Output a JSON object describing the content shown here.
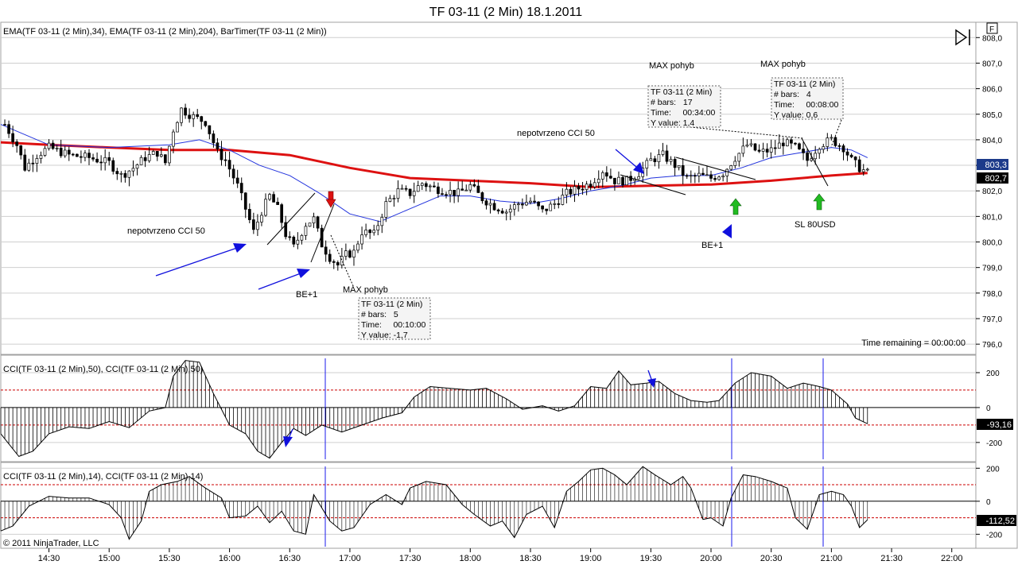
{
  "window": {
    "title": "TF 03-11 (2 Min)  18.1.2011"
  },
  "panels": {
    "price": {
      "indicator_label": "EMA(TF 03-11 (2 Min),34), EMA(TF 03-11 (2 Min),204), BarTimer(TF 03-11 (2 Min))",
      "timer_text": "Time remaining = 00:00:00",
      "current_price": "803,3",
      "current_ema": "802,7"
    },
    "cci50": {
      "label": "CCI(TF 03-11 (2 Min),50), CCI(TF 03-11 (2 Min),50)",
      "current_value": "-93,16"
    },
    "cci14": {
      "label": "CCI(TF 03-11 (2 Min),14), CCI(TF 03-11 (2 Min),14)",
      "current_value": "-112,52"
    }
  },
  "copyright": "© 2011 NinjaTrader, LLC",
  "icons": {
    "scroll_end": "skip-to-end-icon",
    "panel_toggle": "F"
  },
  "annotations": {
    "nepotvrzeno_left": "nepotvrzeno CCI 50",
    "nepotvrzeno_right": "nepotvrzeno CCI 50",
    "be_left": "BE+1",
    "be_right": "BE+1",
    "sl": "SL 80USD",
    "max1": "MAX pohyb",
    "max2": "MAX pohyb",
    "max3": "MAX pohyb",
    "box1": {
      "l1": "TF 03-11 (2 Min)",
      "l2": "# bars:   5",
      "l3": "Time:     00:10:00",
      "l4": "Y value: -1,7"
    },
    "box2": {
      "l1": "TF 03-11 (2 Min)",
      "l2": "# bars:   17",
      "l3": "Time:     00:34:00",
      "l4": "Y value: 1,4"
    },
    "box3": {
      "l1": "TF 03-11 (2 Min)",
      "l2": "# bars:   4",
      "l3": "Time:     00:08:00",
      "l4": "Y value: 0,6"
    }
  },
  "colors": {
    "ema34": "#2233dd",
    "ema204": "#dd1111",
    "candle_up": "#ffffff",
    "candle_down": "#000000",
    "annotation_arrow": "#1010dd",
    "signal_up": "#22bb22",
    "signal_down": "#dd1111",
    "cci_line": "#000000",
    "cci_level": "#cc0000",
    "session_line": "#1a1aee",
    "price_badge": "#1c3a8a"
  },
  "chart_data": [
    {
      "type": "candlestick",
      "title": "TF 03-11 (2 Min)  18.1.2011",
      "x_ticks": [
        "14:30",
        "15:00",
        "15:30",
        "16:00",
        "16:30",
        "17:00",
        "17:30",
        "18:00",
        "18:30",
        "19:00",
        "19:30",
        "20:00",
        "20:30",
        "21:00",
        "21:30",
        "22:00"
      ],
      "y_ticks": [
        "808,0",
        "807,0",
        "806,0",
        "805,0",
        "804,0",
        "803,0",
        "802,0",
        "801,0",
        "800,0",
        "799,0",
        "798,0",
        "797,0",
        "796,0"
      ],
      "ylim": [
        795.6,
        808.6
      ],
      "xlim": [
        "14:06",
        "22:12"
      ],
      "close_path": [
        [
          "14:08",
          804.6
        ],
        [
          "14:14",
          803.8
        ],
        [
          "14:18",
          802.9
        ],
        [
          "14:24",
          803.4
        ],
        [
          "14:30",
          803.7
        ],
        [
          "14:40",
          803.4
        ],
        [
          "14:50",
          803.3
        ],
        [
          "15:00",
          803.1
        ],
        [
          "15:06",
          802.6
        ],
        [
          "15:12",
          802.9
        ],
        [
          "15:18",
          803.3
        ],
        [
          "15:24",
          803.5
        ],
        [
          "15:28",
          803.1
        ],
        [
          "15:32",
          804.4
        ],
        [
          "15:36",
          805.2
        ],
        [
          "15:42",
          804.9
        ],
        [
          "15:48",
          804.7
        ],
        [
          "15:54",
          803.5
        ],
        [
          "15:58",
          803.2
        ],
        [
          "16:04",
          802.2
        ],
        [
          "16:08",
          801.3
        ],
        [
          "16:12",
          800.4
        ],
        [
          "16:16",
          801.2
        ],
        [
          "16:20",
          801.8
        ],
        [
          "16:24",
          801.3
        ],
        [
          "16:28",
          800.3
        ],
        [
          "16:32",
          799.8
        ],
        [
          "16:38",
          800.7
        ],
        [
          "16:42",
          800.9
        ],
        [
          "16:46",
          799.9
        ],
        [
          "16:50",
          799.4
        ],
        [
          "16:54",
          799.1
        ],
        [
          "16:58",
          799.5
        ],
        [
          "17:02",
          799.6
        ],
        [
          "17:06",
          800.4
        ],
        [
          "17:12",
          800.3
        ],
        [
          "17:18",
          801.5
        ],
        [
          "17:24",
          802.0
        ],
        [
          "17:30",
          801.9
        ],
        [
          "17:36",
          802.3
        ],
        [
          "17:42",
          802.1
        ],
        [
          "17:48",
          802.0
        ],
        [
          "17:54",
          801.9
        ],
        [
          "18:00",
          802.2
        ],
        [
          "18:06",
          801.7
        ],
        [
          "18:12",
          801.4
        ],
        [
          "18:18",
          801.2
        ],
        [
          "18:24",
          801.5
        ],
        [
          "18:30",
          801.6
        ],
        [
          "18:36",
          801.2
        ],
        [
          "18:42",
          801.5
        ],
        [
          "18:48",
          801.9
        ],
        [
          "18:54",
          802.1
        ],
        [
          "19:00",
          802.3
        ],
        [
          "19:06",
          802.8
        ],
        [
          "19:12",
          802.4
        ],
        [
          "19:18",
          802.4
        ],
        [
          "19:24",
          802.7
        ],
        [
          "19:30",
          803.2
        ],
        [
          "19:36",
          803.4
        ],
        [
          "19:42",
          803.0
        ],
        [
          "19:48",
          802.5
        ],
        [
          "19:54",
          802.6
        ],
        [
          "20:00",
          802.5
        ],
        [
          "20:06",
          802.7
        ],
        [
          "20:12",
          803.3
        ],
        [
          "20:18",
          803.8
        ],
        [
          "20:24",
          803.5
        ],
        [
          "20:30",
          803.6
        ],
        [
          "20:36",
          803.9
        ],
        [
          "20:42",
          803.7
        ],
        [
          "20:48",
          803.2
        ],
        [
          "20:54",
          803.8
        ],
        [
          "21:00",
          804.0
        ],
        [
          "21:06",
          803.7
        ],
        [
          "21:10",
          803.2
        ],
        [
          "21:14",
          802.9
        ],
        [
          "21:18",
          802.7
        ]
      ],
      "ema34_path": [
        [
          "14:06",
          804.6
        ],
        [
          "14:30",
          803.8
        ],
        [
          "15:00",
          803.7
        ],
        [
          "15:30",
          803.8
        ],
        [
          "15:45",
          804.0
        ],
        [
          "16:00",
          803.6
        ],
        [
          "16:15",
          803.0
        ],
        [
          "16:30",
          802.6
        ],
        [
          "16:45",
          801.9
        ],
        [
          "17:00",
          801.1
        ],
        [
          "17:15",
          800.8
        ],
        [
          "17:30",
          801.3
        ],
        [
          "17:45",
          801.8
        ],
        [
          "18:00",
          801.8
        ],
        [
          "18:15",
          801.6
        ],
        [
          "18:30",
          801.5
        ],
        [
          "18:45",
          801.7
        ],
        [
          "19:00",
          802.0
        ],
        [
          "19:15",
          802.2
        ],
        [
          "19:30",
          802.5
        ],
        [
          "19:45",
          802.6
        ],
        [
          "20:00",
          802.6
        ],
        [
          "20:15",
          802.9
        ],
        [
          "20:30",
          803.3
        ],
        [
          "20:45",
          803.5
        ],
        [
          "21:00",
          803.7
        ],
        [
          "21:10",
          803.6
        ],
        [
          "21:18",
          803.3
        ]
      ],
      "ema204_path": [
        [
          "14:06",
          803.9
        ],
        [
          "14:30",
          803.8
        ],
        [
          "15:00",
          803.7
        ],
        [
          "15:30",
          803.6
        ],
        [
          "16:00",
          803.6
        ],
        [
          "16:30",
          803.4
        ],
        [
          "17:00",
          802.9
        ],
        [
          "17:30",
          802.5
        ],
        [
          "18:00",
          802.4
        ],
        [
          "18:30",
          802.3
        ],
        [
          "19:00",
          802.15
        ],
        [
          "19:30",
          802.2
        ],
        [
          "20:00",
          802.25
        ],
        [
          "20:30",
          802.4
        ],
        [
          "21:00",
          802.6
        ],
        [
          "21:18",
          802.7
        ]
      ]
    },
    {
      "type": "bar",
      "title": "CCI(TF 03-11 (2 Min),50)",
      "y_ticks": [
        "200",
        "0",
        "-200"
      ],
      "ylim": [
        -310,
        300
      ],
      "levels": [
        100,
        -100
      ],
      "path": [
        [
          "14:06",
          -150
        ],
        [
          "14:15",
          -280
        ],
        [
          "14:22",
          -250
        ],
        [
          "14:30",
          -150
        ],
        [
          "14:40",
          -110
        ],
        [
          "14:50",
          -120
        ],
        [
          "15:00",
          -80
        ],
        [
          "15:10",
          -115
        ],
        [
          "15:20",
          -20
        ],
        [
          "15:28",
          0
        ],
        [
          "15:32",
          180
        ],
        [
          "15:38",
          270
        ],
        [
          "15:45",
          260
        ],
        [
          "15:52",
          80
        ],
        [
          "16:00",
          -100
        ],
        [
          "16:08",
          -150
        ],
        [
          "16:14",
          -250
        ],
        [
          "16:20",
          -290
        ],
        [
          "16:26",
          -200
        ],
        [
          "16:32",
          -120
        ],
        [
          "16:38",
          -160
        ],
        [
          "16:46",
          -100
        ],
        [
          "16:56",
          -140
        ],
        [
          "17:06",
          -100
        ],
        [
          "17:16",
          -60
        ],
        [
          "17:26",
          -30
        ],
        [
          "17:32",
          60
        ],
        [
          "17:40",
          120
        ],
        [
          "17:50",
          110
        ],
        [
          "18:00",
          100
        ],
        [
          "18:08",
          110
        ],
        [
          "18:18",
          50
        ],
        [
          "18:26",
          -10
        ],
        [
          "18:36",
          10
        ],
        [
          "18:44",
          -20
        ],
        [
          "18:52",
          10
        ],
        [
          "19:00",
          120
        ],
        [
          "19:08",
          110
        ],
        [
          "19:14",
          210
        ],
        [
          "19:20",
          130
        ],
        [
          "19:28",
          140
        ],
        [
          "19:34",
          150
        ],
        [
          "19:42",
          80
        ],
        [
          "19:50",
          40
        ],
        [
          "19:58",
          30
        ],
        [
          "20:04",
          40
        ],
        [
          "20:12",
          140
        ],
        [
          "20:20",
          200
        ],
        [
          "20:30",
          180
        ],
        [
          "20:38",
          110
        ],
        [
          "20:46",
          140
        ],
        [
          "20:54",
          120
        ],
        [
          "21:00",
          100
        ],
        [
          "21:08",
          20
        ],
        [
          "21:12",
          -60
        ],
        [
          "21:18",
          -93
        ]
      ]
    },
    {
      "type": "line",
      "title": "CCI(TF 03-11 (2 Min),14)",
      "y_ticks": [
        "200",
        "0",
        "-200"
      ],
      "ylim": [
        -285,
        235
      ],
      "levels": [
        100,
        -100
      ],
      "path": [
        [
          "14:06",
          -180
        ],
        [
          "14:12",
          -150
        ],
        [
          "14:20",
          -30
        ],
        [
          "14:30",
          30
        ],
        [
          "14:40",
          20
        ],
        [
          "14:50",
          20
        ],
        [
          "15:00",
          -20
        ],
        [
          "15:06",
          -100
        ],
        [
          "15:10",
          -230
        ],
        [
          "15:16",
          -120
        ],
        [
          "15:20",
          60
        ],
        [
          "15:26",
          100
        ],
        [
          "15:34",
          120
        ],
        [
          "15:40",
          150
        ],
        [
          "15:48",
          80
        ],
        [
          "15:56",
          20
        ],
        [
          "16:00",
          -100
        ],
        [
          "16:08",
          -90
        ],
        [
          "16:14",
          -30
        ],
        [
          "16:20",
          -130
        ],
        [
          "16:26",
          -60
        ],
        [
          "16:32",
          -180
        ],
        [
          "16:38",
          -200
        ],
        [
          "16:42",
          40
        ],
        [
          "16:50",
          -120
        ],
        [
          "16:56",
          -180
        ],
        [
          "17:02",
          -160
        ],
        [
          "17:10",
          -20
        ],
        [
          "17:18",
          40
        ],
        [
          "17:26",
          -20
        ],
        [
          "17:30",
          80
        ],
        [
          "17:38",
          120
        ],
        [
          "17:48",
          100
        ],
        [
          "17:56",
          -20
        ],
        [
          "18:02",
          -80
        ],
        [
          "18:10",
          -150
        ],
        [
          "18:16",
          -120
        ],
        [
          "18:22",
          -220
        ],
        [
          "18:28",
          -80
        ],
        [
          "18:36",
          -30
        ],
        [
          "18:42",
          -160
        ],
        [
          "18:48",
          60
        ],
        [
          "18:54",
          120
        ],
        [
          "19:00",
          190
        ],
        [
          "19:06",
          200
        ],
        [
          "19:12",
          160
        ],
        [
          "19:18",
          100
        ],
        [
          "19:26",
          210
        ],
        [
          "19:32",
          160
        ],
        [
          "19:40",
          100
        ],
        [
          "19:46",
          150
        ],
        [
          "19:50",
          80
        ],
        [
          "19:56",
          -110
        ],
        [
          "20:00",
          -100
        ],
        [
          "20:06",
          -150
        ],
        [
          "20:10",
          20
        ],
        [
          "20:16",
          160
        ],
        [
          "20:22",
          150
        ],
        [
          "20:30",
          120
        ],
        [
          "20:38",
          80
        ],
        [
          "20:42",
          -100
        ],
        [
          "20:48",
          -170
        ],
        [
          "20:54",
          40
        ],
        [
          "21:00",
          60
        ],
        [
          "21:06",
          40
        ],
        [
          "21:10",
          -30
        ],
        [
          "21:14",
          -160
        ],
        [
          "21:18",
          -112
        ]
      ]
    }
  ]
}
